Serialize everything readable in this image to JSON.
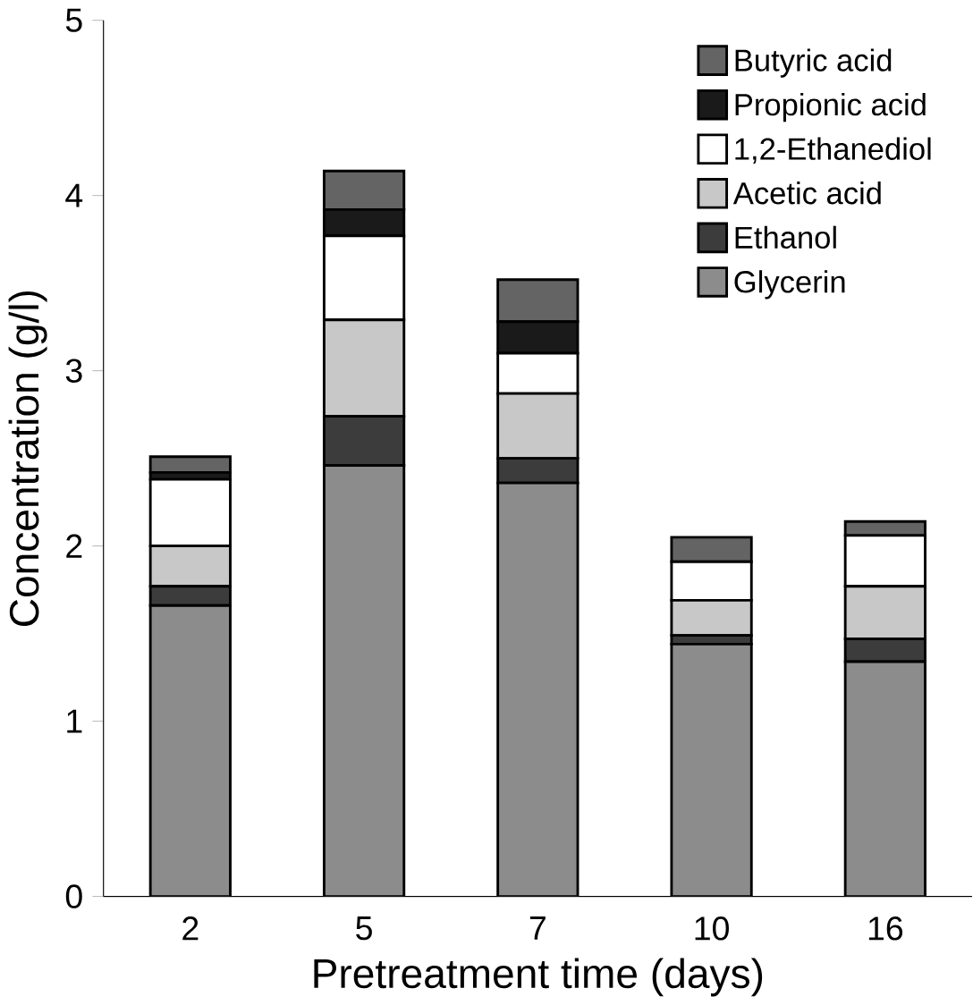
{
  "chart_data": {
    "type": "bar",
    "stacked": true,
    "xlabel": "Pretreatment time (days)",
    "ylabel": "Concentration (g/l)",
    "categories": [
      "2",
      "5",
      "7",
      "10",
      "16"
    ],
    "series": [
      {
        "name": "Glycerin",
        "color": "#8c8c8c",
        "values": [
          1.66,
          2.46,
          2.36,
          1.44,
          1.34
        ]
      },
      {
        "name": "Ethanol",
        "color": "#3c3c3c",
        "values": [
          0.11,
          0.28,
          0.14,
          0.05,
          0.13
        ]
      },
      {
        "name": "Acetic acid",
        "color": "#c8c8c8",
        "values": [
          0.23,
          0.55,
          0.37,
          0.2,
          0.3
        ]
      },
      {
        "name": "1,2-Ethanediol",
        "color": "#ffffff",
        "values": [
          0.38,
          0.48,
          0.23,
          0.22,
          0.29
        ]
      },
      {
        "name": "Propionic acid",
        "color": "#1a1a1a",
        "values": [
          0.04,
          0.15,
          0.18,
          0,
          0
        ]
      },
      {
        "name": "Butyric acid",
        "color": "#646464",
        "values": [
          0.09,
          0.22,
          0.24,
          0.14,
          0.08
        ]
      }
    ],
    "ylim": [
      0,
      5
    ],
    "yticks": [
      0,
      1,
      2,
      3,
      4,
      5
    ],
    "grid": false,
    "legend": "top right"
  }
}
